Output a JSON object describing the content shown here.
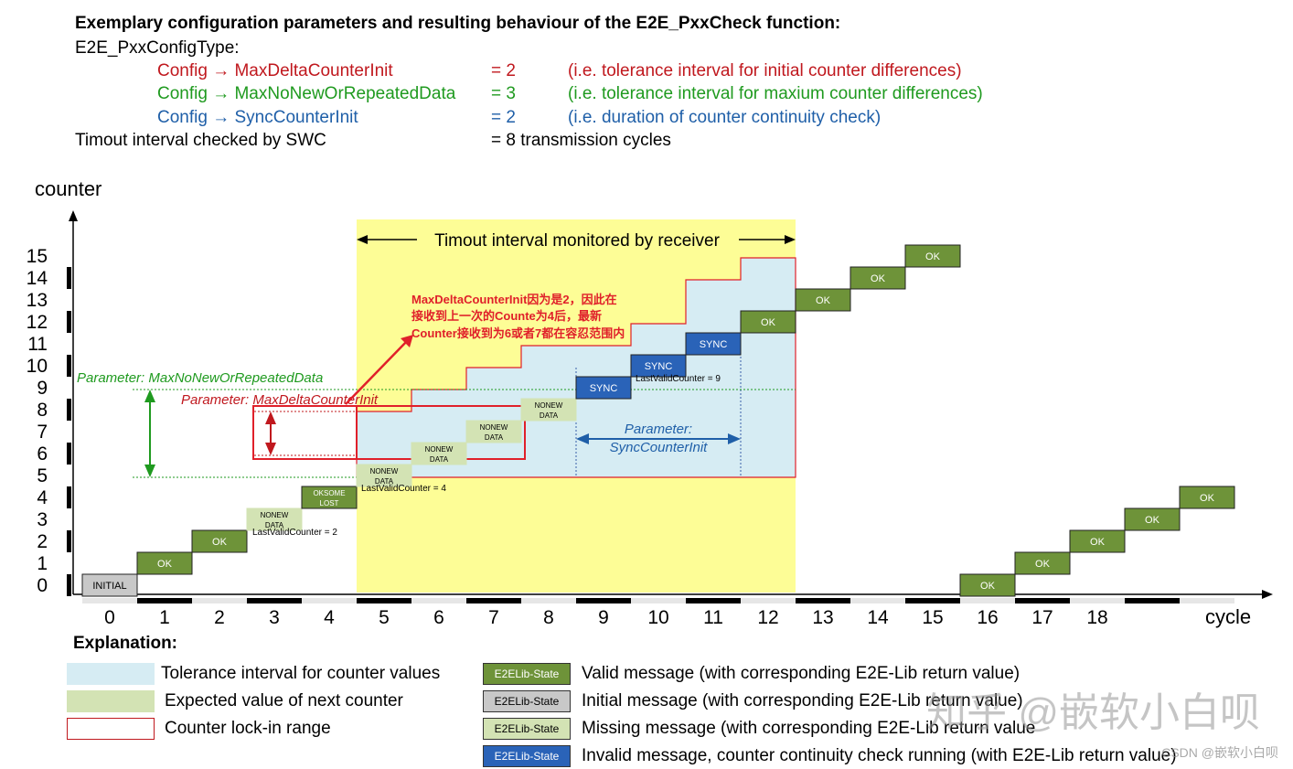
{
  "header": {
    "title": "Exemplary configuration parameters and resulting behaviour of the E2E_PxxCheck function:",
    "config_type": "E2E_PxxConfigType:",
    "params": [
      {
        "name": "Config → MaxDeltaCounterInit",
        "eq": "= 2",
        "desc": "(i.e. tolerance interval for initial counter differences)",
        "color": "#c0181e"
      },
      {
        "name": "Config → MaxNoNewOrRepeatedData",
        "eq": "= 3",
        "desc": "(i.e. tolerance interval for maxium counter differences)",
        "color": "#1f9a1f"
      },
      {
        "name": "Config → SyncCounterInit",
        "eq": "= 2",
        "desc": "(i.e. duration of counter continuity check)",
        "color": "#1f5fa8"
      }
    ],
    "timeout_label": "Timout interval checked by SWC",
    "timeout_value": "= 8 transmission cycles"
  },
  "chart": {
    "y_label": "counter",
    "x_label": "cycle",
    "y_ticks": [
      "0",
      "1",
      "2",
      "3",
      "4",
      "5",
      "6",
      "7",
      "8",
      "9",
      "10",
      "11",
      "12",
      "13",
      "14",
      "15"
    ],
    "x_ticks": [
      "0",
      "1",
      "2",
      "3",
      "4",
      "5",
      "6",
      "7",
      "8",
      "9",
      "10",
      "11",
      "12",
      "13",
      "14",
      "15",
      "16",
      "17",
      "18"
    ],
    "timeout_banner": "Timout interval monitored by receiver",
    "param_maxnonew": "Parameter: MaxNoNewOrRepeatedData",
    "param_maxdelta": "Parameter: MaxDeltaCounterInit",
    "param_sync_line1": "Parameter:",
    "param_sync_line2": "SyncCounterInit",
    "annotation_cn_line1": "MaxDeltaCounterInit因为是2，因此在",
    "annotation_cn_line2": "接收到上一次的Counte为4后，最新",
    "annotation_cn_line3": "Counter接收到为6或者7都在容忍范围内",
    "lastvalid_2": "LastValidCounter = 2",
    "lastvalid_4": "LastValidCounter = 4",
    "lastvalid_9": "LastValidCounter = 9",
    "states": [
      {
        "cycle": 0,
        "counter": 0,
        "label": "INITIAL",
        "kind": "initial"
      },
      {
        "cycle": 1,
        "counter": 1,
        "label": "OK",
        "kind": "ok"
      },
      {
        "cycle": 2,
        "counter": 2,
        "label": "OK",
        "kind": "ok"
      },
      {
        "cycle": 3,
        "counter": 3,
        "label": "NONEW\nDATA",
        "kind": "missing"
      },
      {
        "cycle": 4,
        "counter": 4,
        "label": "OKSOME\nLOST",
        "kind": "ok"
      },
      {
        "cycle": 5,
        "counter": 5,
        "label": "NONEW\nDATA",
        "kind": "missing"
      },
      {
        "cycle": 6,
        "counter": 6,
        "label": "NONEW\nDATA",
        "kind": "missing"
      },
      {
        "cycle": 7,
        "counter": 7,
        "label": "NONEW\nDATA",
        "kind": "missing"
      },
      {
        "cycle": 8,
        "counter": 8,
        "label": "NONEW\nDATA",
        "kind": "missing"
      },
      {
        "cycle": 9,
        "counter": 9,
        "label": "SYNC",
        "kind": "invalid"
      },
      {
        "cycle": 10,
        "counter": 10,
        "label": "SYNC",
        "kind": "invalid"
      },
      {
        "cycle": 11,
        "counter": 11,
        "label": "SYNC",
        "kind": "invalid"
      },
      {
        "cycle": 12,
        "counter": 12,
        "label": "OK",
        "kind": "ok"
      },
      {
        "cycle": 13,
        "counter": 13,
        "label": "OK",
        "kind": "ok"
      },
      {
        "cycle": 14,
        "counter": 14,
        "label": "OK",
        "kind": "ok"
      },
      {
        "cycle": 15,
        "counter": 15,
        "label": "OK",
        "kind": "ok"
      },
      {
        "cycle": 16,
        "counter": 0,
        "label": "OK",
        "kind": "ok"
      },
      {
        "cycle": 17,
        "counter": 1,
        "label": "OK",
        "kind": "ok"
      },
      {
        "cycle": 18,
        "counter": 2,
        "label": "OK",
        "kind": "ok"
      },
      {
        "cycle": 19,
        "counter": 3,
        "label": "OK",
        "kind": "ok"
      },
      {
        "cycle": 20,
        "counter": 4,
        "label": "OK",
        "kind": "ok"
      }
    ]
  },
  "legend": {
    "heading": "Explanation:",
    "swatches": [
      {
        "text": "Tolerance interval for counter values",
        "color": "#d6ecf3"
      },
      {
        "text": "Expected value of next counter",
        "color": "#d3e3b4"
      },
      {
        "text": "Counter lock-in range",
        "color": "#c0181e"
      }
    ],
    "states": [
      {
        "box": "E2ELib-State",
        "text": "Valid message (with corresponding E2E-Lib return value)",
        "color": "#6e9339"
      },
      {
        "box": "E2ELib-State",
        "text": "Initial message (with corresponding E2E-Lib return value)",
        "color": "#c8c8c8"
      },
      {
        "box": "E2ELib-State",
        "text": "Missing message (with corresponding E2E-Lib return value",
        "color": "#d3e3b4"
      },
      {
        "box": "E2ELib-State",
        "text": "Invalid message, counter continuity check running (with E2E-Lib return value)",
        "color": "#2a63b8"
      }
    ]
  },
  "watermark": {
    "main": "知乎 @嵌软小白呗",
    "small": "CSDN @嵌软小白呗"
  }
}
